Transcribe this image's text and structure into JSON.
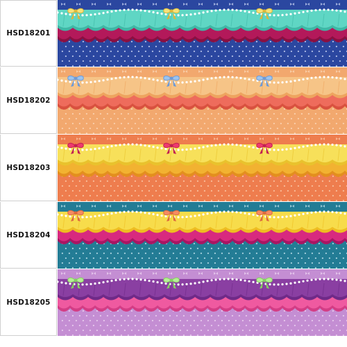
{
  "rows": [
    {
      "code": "HSD18201",
      "colors": {
        "bg": "#2b47a0",
        "pattern": "#c9d3f2",
        "ruffle_top": "#5fd6c4",
        "ruffle_top_dark": "#3fb8a6",
        "ruffle_bottom": "#b3195a",
        "ruffle_bottom_dark": "#8a1042",
        "bow": "#f7e27a",
        "bow_dark": "#d9b63d",
        "pearl": "#ffffff"
      }
    },
    {
      "code": "HSD18202",
      "colors": {
        "bg": "#f2a86e",
        "pattern": "#fbd7b8",
        "ruffle_top": "#f6c487",
        "ruffle_top_dark": "#eea45f",
        "ruffle_bottom": "#ee6c5c",
        "ruffle_bottom_dark": "#d9513f",
        "bow": "#9cc3ee",
        "bow_dark": "#6e9ad6",
        "pearl": "#ffffff"
      }
    },
    {
      "code": "HSD18203",
      "colors": {
        "bg": "#ee7d4e",
        "pattern": "#fbc9a8",
        "ruffle_top": "#f7e05a",
        "ruffle_top_dark": "#e9c22d",
        "ruffle_bottom": "#f2b231",
        "ruffle_bottom_dark": "#e38f1e",
        "bow": "#ee3a6e",
        "bow_dark": "#c21f52",
        "pearl": "#ffffff"
      }
    },
    {
      "code": "HSD18204",
      "colors": {
        "bg": "#237c95",
        "pattern": "#bde0ea",
        "ruffle_top": "#f7dc4b",
        "ruffle_top_dark": "#eebd21",
        "ruffle_bottom": "#d8297f",
        "ruffle_bottom_dark": "#a81663",
        "bow": "#f58c62",
        "bow_dark": "#dc6a3e",
        "pearl": "#ffffff"
      }
    },
    {
      "code": "HSD18205",
      "colors": {
        "bg": "#c48ed3",
        "pattern": "#ecd4f2",
        "ruffle_top": "#8a3fa2",
        "ruffle_top_dark": "#6f2a88",
        "ruffle_bottom": "#ef5aa0",
        "ruffle_bottom_dark": "#d33d85",
        "bow": "#b7ef96",
        "bow_dark": "#86cf63",
        "pearl": "#ffffff"
      }
    }
  ]
}
